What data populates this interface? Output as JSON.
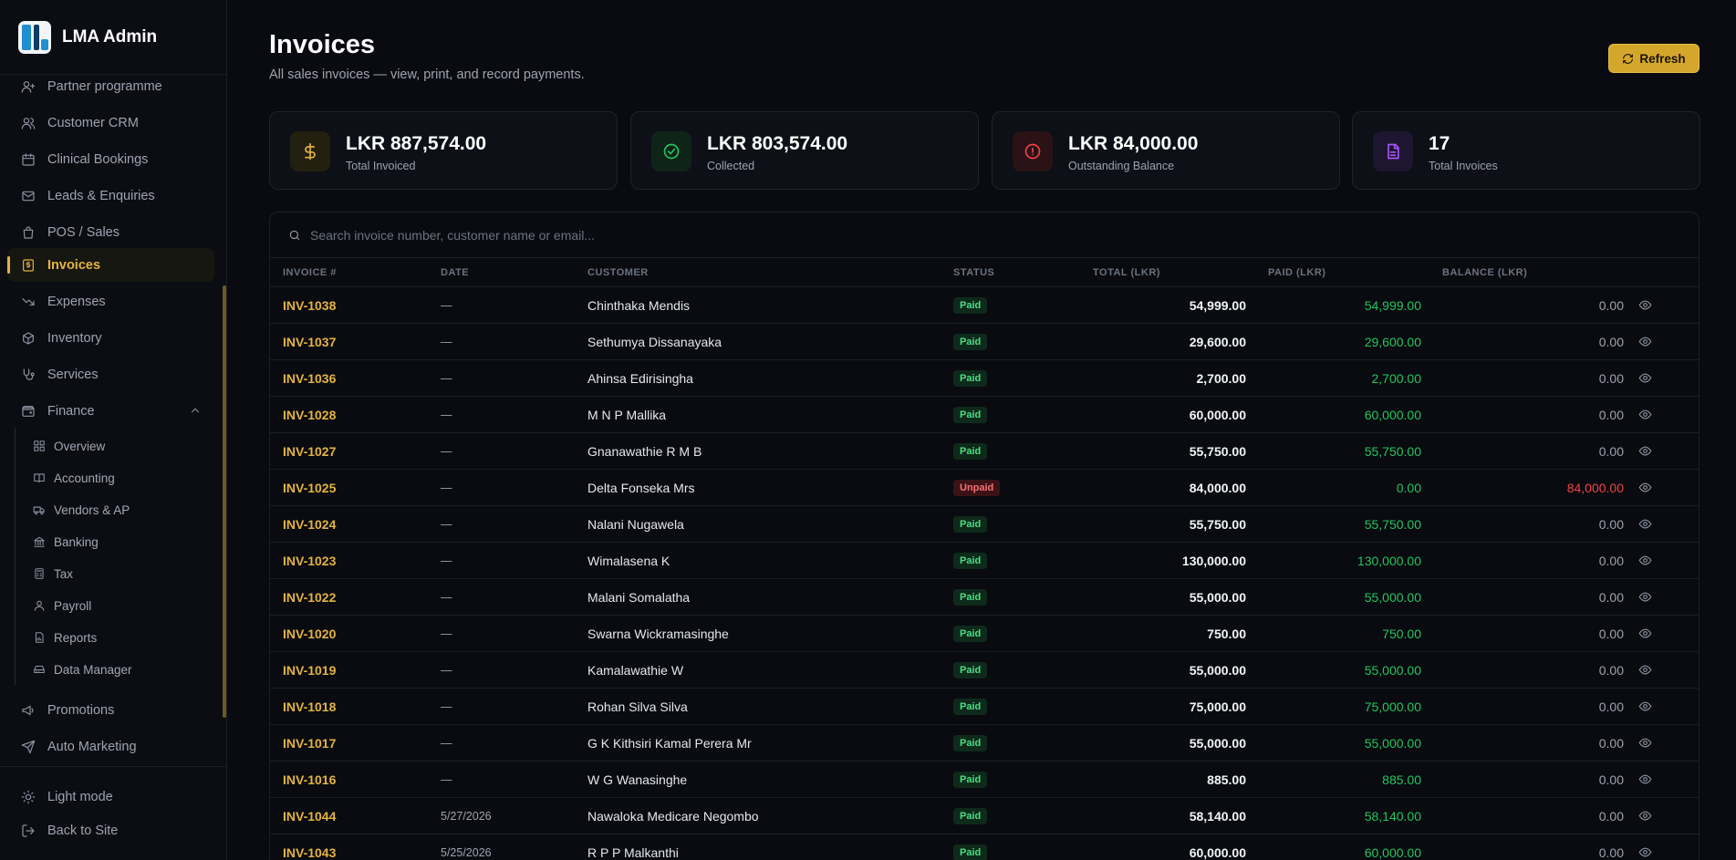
{
  "brand": {
    "name": "LMA Admin"
  },
  "nav": {
    "items": [
      {
        "label": "Partner programme",
        "icon": "user-plus-icon"
      },
      {
        "label": "Customer CRM",
        "icon": "users-icon"
      },
      {
        "label": "Clinical Bookings",
        "icon": "calendar-icon"
      },
      {
        "label": "Leads & Enquiries",
        "icon": "mail-icon"
      },
      {
        "label": "POS / Sales",
        "icon": "shopping-bag-icon"
      },
      {
        "label": "Invoices",
        "icon": "invoice-dollar-icon",
        "active": true
      },
      {
        "label": "Expenses",
        "icon": "trending-down-icon"
      },
      {
        "label": "Inventory",
        "icon": "package-icon"
      },
      {
        "label": "Services",
        "icon": "stethoscope-icon"
      },
      {
        "label": "Finance",
        "icon": "wallet-icon",
        "expanded": true
      }
    ],
    "finance_sub": [
      {
        "label": "Overview",
        "icon": "grid-icon"
      },
      {
        "label": "Accounting",
        "icon": "book-icon"
      },
      {
        "label": "Vendors & AP",
        "icon": "truck-icon"
      },
      {
        "label": "Banking",
        "icon": "bank-icon"
      },
      {
        "label": "Tax",
        "icon": "calculator-icon"
      },
      {
        "label": "Payroll",
        "icon": "user-icon"
      },
      {
        "label": "Reports",
        "icon": "file-chart-icon"
      },
      {
        "label": "Data Manager",
        "icon": "hard-drive-icon"
      }
    ],
    "after": [
      {
        "label": "Promotions",
        "icon": "megaphone-icon"
      },
      {
        "label": "Auto Marketing",
        "icon": "send-icon"
      }
    ],
    "bottom": [
      {
        "label": "Light mode",
        "icon": "sun-icon"
      },
      {
        "label": "Back to Site",
        "icon": "log-out-icon"
      }
    ]
  },
  "header": {
    "title": "Invoices",
    "subtitle": "All sales invoices — view, print, and record payments.",
    "refresh_label": "Refresh"
  },
  "stats": [
    {
      "value": "LKR 887,574.00",
      "label": "Total Invoiced",
      "icon": "dollar-icon",
      "color": "#e3b341",
      "bg": "#24200f"
    },
    {
      "value": "LKR 803,574.00",
      "label": "Collected",
      "icon": "check-circle-icon",
      "color": "#22c55e",
      "bg": "#0f2418"
    },
    {
      "value": "LKR 84,000.00",
      "label": "Outstanding Balance",
      "icon": "alert-circle-icon",
      "color": "#ef4444",
      "bg": "#2a1216"
    },
    {
      "value": "17",
      "label": "Total Invoices",
      "icon": "file-text-icon",
      "color": "#a855f7",
      "bg": "#1e1530"
    }
  ],
  "search": {
    "placeholder": "Search invoice number, customer name or email..."
  },
  "table": {
    "columns": [
      "INVOICE #",
      "DATE",
      "CUSTOMER",
      "STATUS",
      "TOTAL (LKR)",
      "PAID (LKR)",
      "BALANCE (LKR)"
    ],
    "rows": [
      {
        "inv": "INV-1038",
        "date": "—",
        "customer": "Chinthaka Mendis",
        "status": "Paid",
        "total": "54,999.00",
        "paid": "54,999.00",
        "balance": "0.00"
      },
      {
        "inv": "INV-1037",
        "date": "—",
        "customer": "Sethumya Dissanayaka",
        "status": "Paid",
        "total": "29,600.00",
        "paid": "29,600.00",
        "balance": "0.00"
      },
      {
        "inv": "INV-1036",
        "date": "—",
        "customer": "Ahinsa Edirisingha",
        "status": "Paid",
        "total": "2,700.00",
        "paid": "2,700.00",
        "balance": "0.00"
      },
      {
        "inv": "INV-1028",
        "date": "—",
        "customer": "M N P Mallika",
        "status": "Paid",
        "total": "60,000.00",
        "paid": "60,000.00",
        "balance": "0.00"
      },
      {
        "inv": "INV-1027",
        "date": "—",
        "customer": "Gnanawathie R M B",
        "status": "Paid",
        "total": "55,750.00",
        "paid": "55,750.00",
        "balance": "0.00"
      },
      {
        "inv": "INV-1025",
        "date": "—",
        "customer": "Delta Fonseka Mrs",
        "status": "Unpaid",
        "total": "84,000.00",
        "paid": "0.00",
        "balance": "84,000.00"
      },
      {
        "inv": "INV-1024",
        "date": "—",
        "customer": "Nalani Nugawela",
        "status": "Paid",
        "total": "55,750.00",
        "paid": "55,750.00",
        "balance": "0.00"
      },
      {
        "inv": "INV-1023",
        "date": "—",
        "customer": "Wimalasena K",
        "status": "Paid",
        "total": "130,000.00",
        "paid": "130,000.00",
        "balance": "0.00"
      },
      {
        "inv": "INV-1022",
        "date": "—",
        "customer": "Malani Somalatha",
        "status": "Paid",
        "total": "55,000.00",
        "paid": "55,000.00",
        "balance": "0.00"
      },
      {
        "inv": "INV-1020",
        "date": "—",
        "customer": "Swarna Wickramasinghe",
        "status": "Paid",
        "total": "750.00",
        "paid": "750.00",
        "balance": "0.00"
      },
      {
        "inv": "INV-1019",
        "date": "—",
        "customer": "Kamalawathie W",
        "status": "Paid",
        "total": "55,000.00",
        "paid": "55,000.00",
        "balance": "0.00"
      },
      {
        "inv": "INV-1018",
        "date": "—",
        "customer": "Rohan Silva Silva",
        "status": "Paid",
        "total": "75,000.00",
        "paid": "75,000.00",
        "balance": "0.00"
      },
      {
        "inv": "INV-1017",
        "date": "—",
        "customer": "G K Kithsiri Kamal Perera Mr",
        "status": "Paid",
        "total": "55,000.00",
        "paid": "55,000.00",
        "balance": "0.00"
      },
      {
        "inv": "INV-1016",
        "date": "—",
        "customer": "W G Wanasinghe",
        "status": "Paid",
        "total": "885.00",
        "paid": "885.00",
        "balance": "0.00"
      },
      {
        "inv": "INV-1044",
        "date": "5/27/2026",
        "customer": "Nawaloka Medicare Negombo",
        "status": "Paid",
        "total": "58,140.00",
        "paid": "58,140.00",
        "balance": "0.00"
      },
      {
        "inv": "INV-1043",
        "date": "5/25/2026",
        "customer": "R P P Malkanthi",
        "status": "Paid",
        "total": "60,000.00",
        "paid": "60,000.00",
        "balance": "0.00"
      }
    ]
  }
}
